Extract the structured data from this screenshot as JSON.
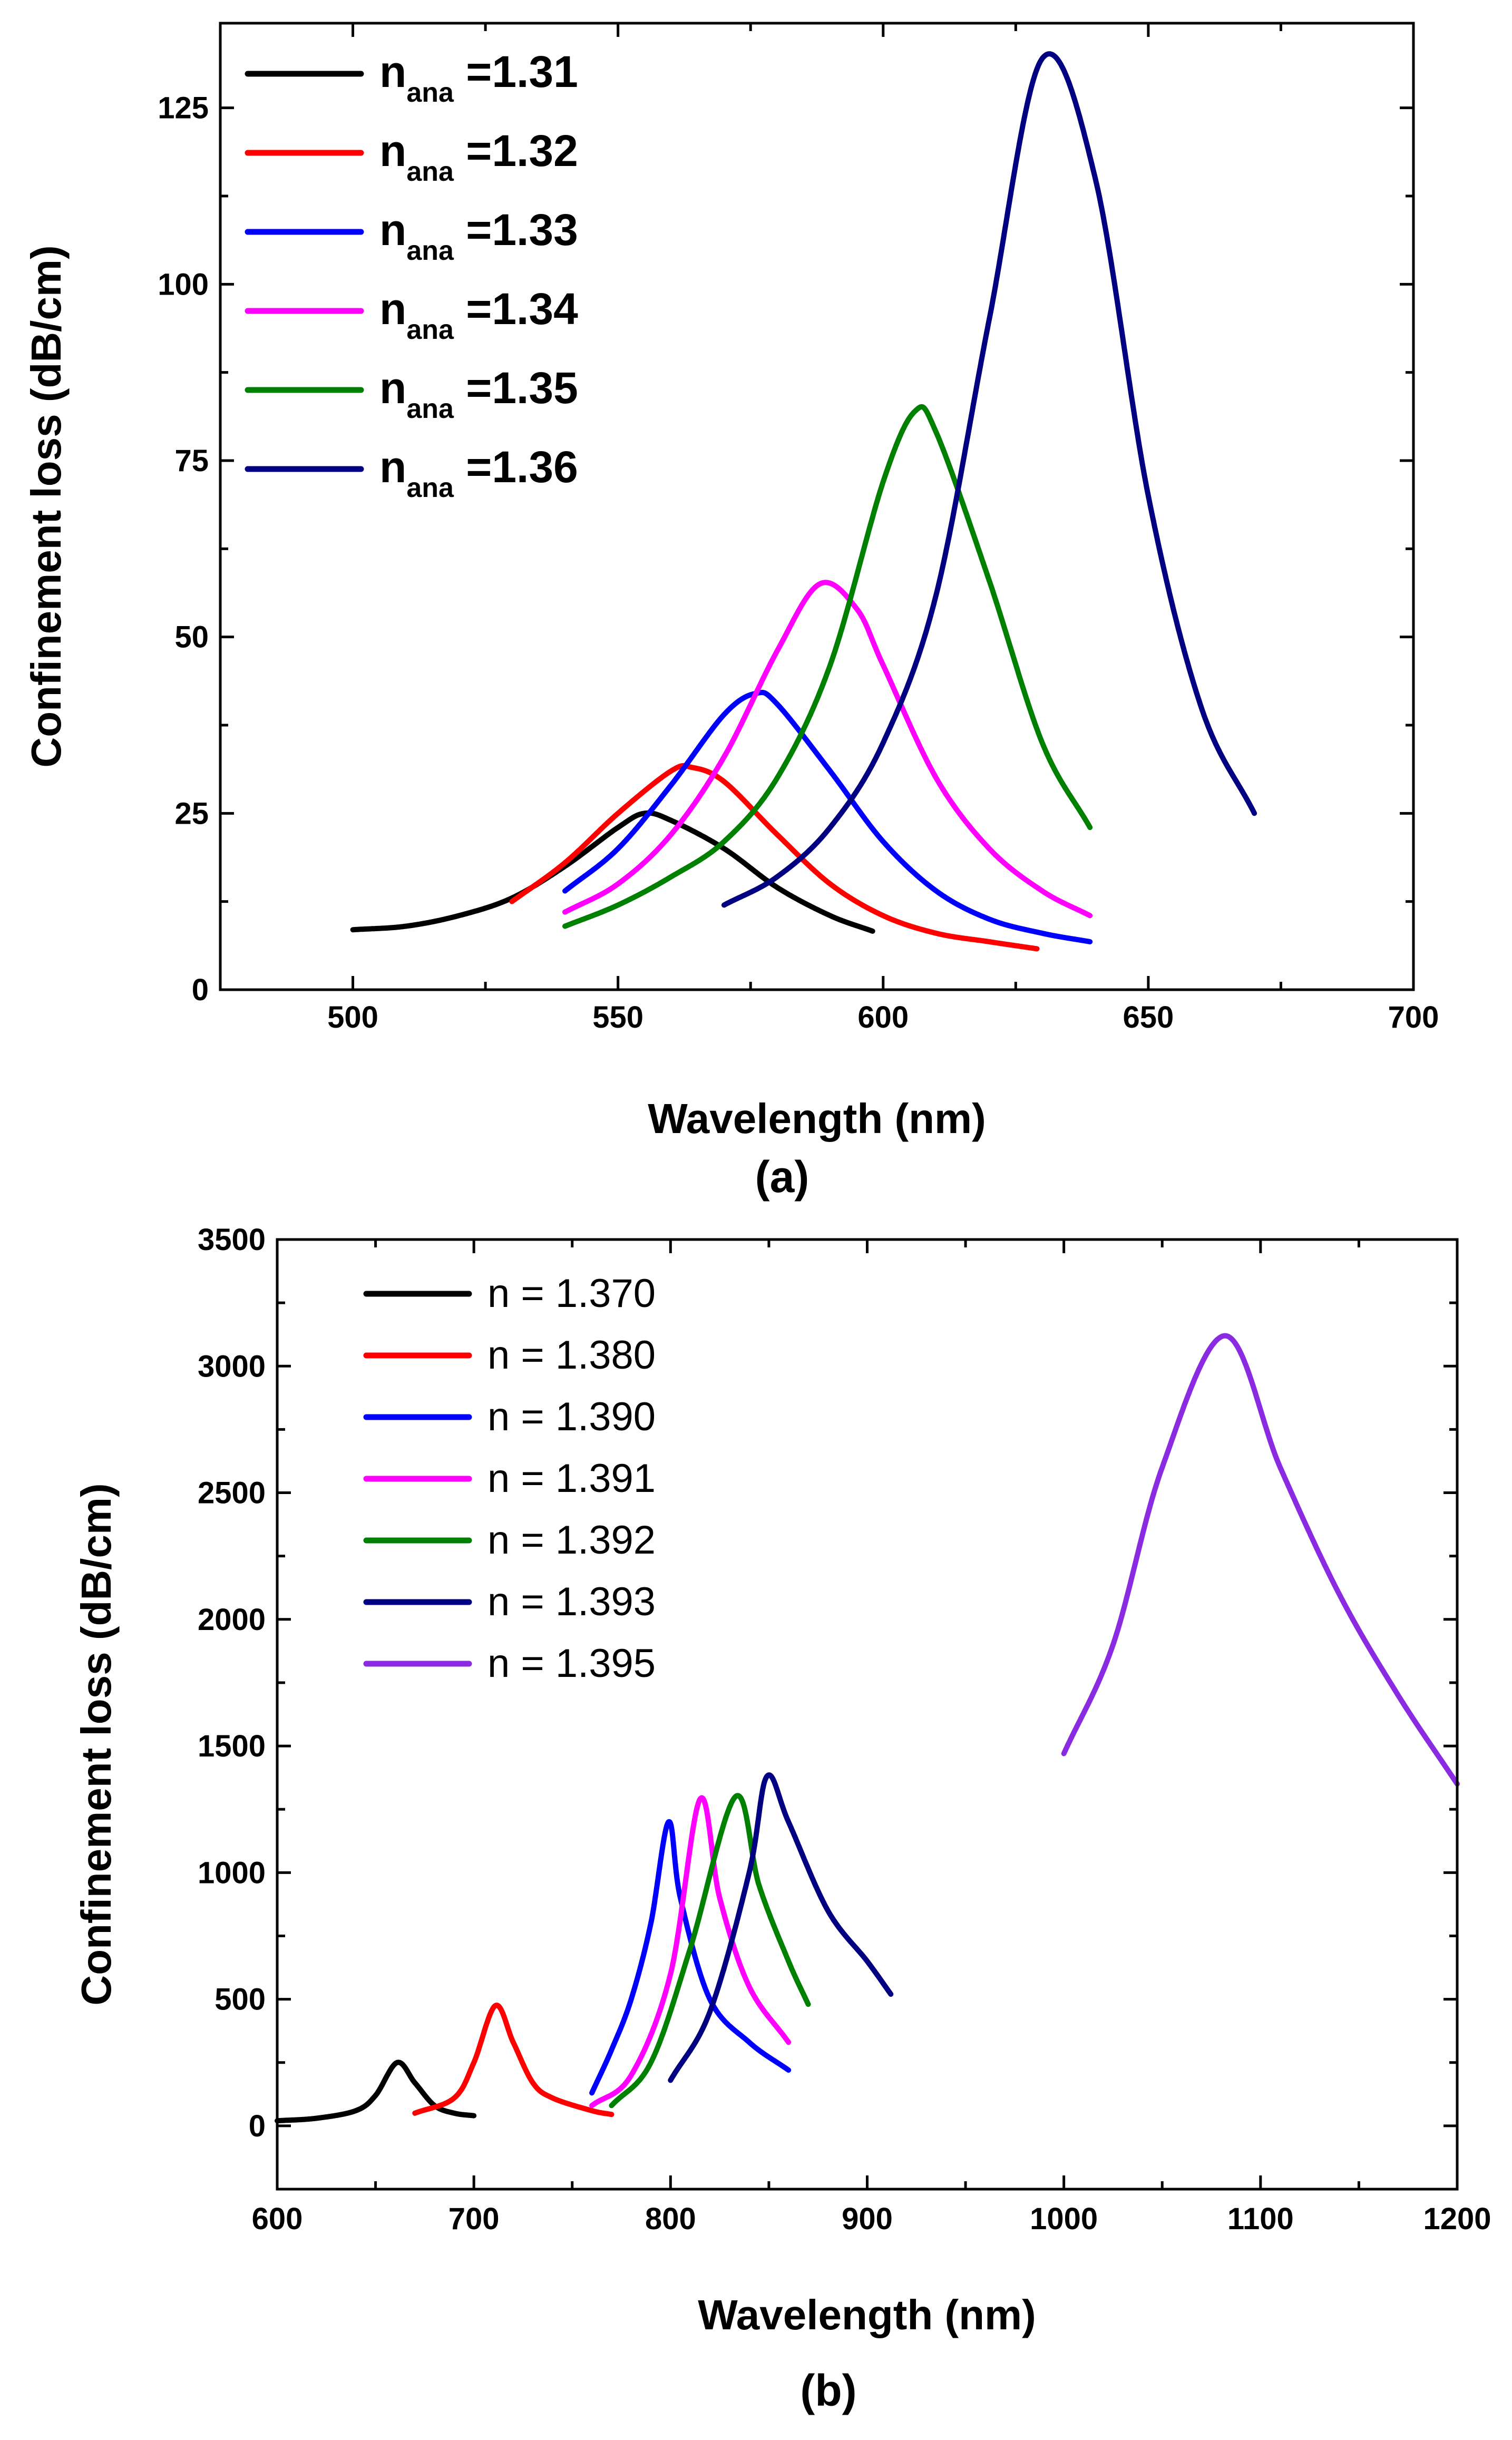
{
  "chart_data": [
    {
      "panel": "(a)",
      "type": "line",
      "xlabel": "Wavelength (nm)",
      "ylabel": "Confinement loss (dB/cm)",
      "xlim": [
        475,
        700
      ],
      "ylim": [
        0,
        137
      ],
      "xticks": [
        500,
        550,
        600,
        650,
        700
      ],
      "yticks": [
        0,
        25,
        50,
        75,
        100,
        125
      ],
      "legend_position": "top-left",
      "series": [
        {
          "name": "n",
          "sub": "ana",
          "suffix": " =1.31",
          "color": "#000000",
          "peak_x": 555,
          "peak_y": 25,
          "gamma": 30,
          "x": [
            500,
            510,
            520,
            530,
            540,
            550,
            555,
            560,
            570,
            580,
            590,
            598
          ],
          "y": [
            8.5,
            9,
            10.5,
            13,
            17.5,
            23,
            25,
            24,
            20,
            14.5,
            10.5,
            8.3
          ]
        },
        {
          "name": "n",
          "sub": "ana",
          "suffix": " =1.32",
          "color": "#ff0000",
          "peak_x": 564,
          "peak_y": 31.5,
          "gamma": 26,
          "x": [
            530,
            540,
            550,
            560,
            564,
            570,
            580,
            590,
            600,
            610,
            620,
            629
          ],
          "y": [
            12.5,
            18,
            25,
            31,
            31.5,
            29.5,
            22,
            15,
            10.5,
            8,
            6.8,
            5.8
          ]
        },
        {
          "name": "n",
          "sub": "ana",
          "suffix": " =1.33",
          "color": "#0000ff",
          "peak_x": 576,
          "peak_y": 42,
          "gamma": 22,
          "x": [
            540,
            550,
            560,
            570,
            576,
            580,
            590,
            600,
            610,
            620,
            630,
            639
          ],
          "y": [
            14,
            20,
            29,
            39,
            42,
            40.5,
            31,
            21,
            14,
            10,
            8,
            6.8
          ]
        },
        {
          "name": "n",
          "sub": "ana",
          "suffix": " =1.34",
          "color": "#ff00ff",
          "peak_x": 588,
          "peak_y": 57.5,
          "gamma": 20,
          "x": [
            540,
            550,
            560,
            570,
            580,
            588,
            595,
            600,
            610,
            620,
            630,
            639
          ],
          "y": [
            11,
            15,
            22,
            33,
            48,
            57.5,
            54,
            46,
            30,
            20,
            14,
            10.5
          ]
        },
        {
          "name": "n",
          "sub": "ana",
          "suffix": " =1.35",
          "color": "#008000",
          "peak_x": 606,
          "peak_y": 82,
          "gamma": 18,
          "x": [
            540,
            550,
            560,
            570,
            580,
            590,
            600,
            606,
            610,
            620,
            630,
            639
          ],
          "y": [
            9,
            12,
            16,
            21,
            30,
            46,
            72,
            82,
            79,
            58,
            35,
            23
          ]
        },
        {
          "name": "n",
          "sub": "ana",
          "suffix": " =1.36",
          "color": "#000080",
          "peak_x": 630,
          "peak_y": 132,
          "gamma": 18,
          "x": [
            570,
            580,
            590,
            600,
            610,
            620,
            630,
            640,
            650,
            660,
            670
          ],
          "y": [
            12,
            16,
            23,
            35,
            56,
            95,
            132,
            115,
            70,
            40,
            25
          ]
        }
      ]
    },
    {
      "panel": "(b)",
      "type": "line",
      "xlabel": "Wavelength (nm)",
      "ylabel": "Confinement loss (dB/cm)",
      "xlim": [
        600,
        1200
      ],
      "ylim": [
        -250,
        3500
      ],
      "xticks": [
        600,
        700,
        800,
        900,
        1000,
        1100,
        1200
      ],
      "yticks": [
        0,
        500,
        1000,
        1500,
        2000,
        2500,
        3000,
        3500
      ],
      "legend_position": "top-left",
      "series": [
        {
          "name": "n = 1.370",
          "color": "#000000",
          "peak_x": 661,
          "peak_y": 250,
          "gamma": 22,
          "x": [
            600,
            620,
            640,
            650,
            661,
            670,
            680,
            690,
            700
          ],
          "y": [
            20,
            30,
            60,
            120,
            250,
            170,
            80,
            50,
            40
          ]
        },
        {
          "name": "n = 1.380",
          "color": "#ff0000",
          "peak_x": 711,
          "peak_y": 475,
          "gamma": 20,
          "x": [
            670,
            690,
            700,
            711,
            720,
            730,
            740,
            760,
            770
          ],
          "y": [
            50,
            110,
            250,
            475,
            330,
            170,
            110,
            60,
            45
          ]
        },
        {
          "name": "n = 1.390",
          "color": "#0000ff",
          "peak_x": 799,
          "peak_y": 1200,
          "gamma": 30,
          "x": [
            760,
            770,
            780,
            790,
            799,
            805,
            820,
            840,
            860
          ],
          "y": [
            130,
            300,
            500,
            800,
            1200,
            900,
            500,
            330,
            220
          ]
        },
        {
          "name": "n = 1.391",
          "color": "#ff00ff",
          "peak_x": 815,
          "peak_y": 1290,
          "gamma": 28,
          "x": [
            760,
            780,
            800,
            815,
            825,
            840,
            860
          ],
          "y": [
            80,
            200,
            600,
            1290,
            900,
            550,
            330
          ]
        },
        {
          "name": "n = 1.392",
          "color": "#008000",
          "peak_x": 833,
          "peak_y": 1300,
          "gamma": 28,
          "x": [
            770,
            790,
            810,
            833,
            845,
            860,
            870
          ],
          "y": [
            80,
            250,
            700,
            1300,
            950,
            650,
            480
          ]
        },
        {
          "name": "n = 1.393",
          "color": "#000080",
          "peak_x": 849,
          "peak_y": 1380,
          "gamma": 30,
          "x": [
            800,
            820,
            840,
            849,
            860,
            880,
            900,
            912
          ],
          "y": [
            180,
            450,
            1000,
            1380,
            1200,
            850,
            650,
            520
          ]
        },
        {
          "name": "n = 1.395",
          "color": "#8a2be2",
          "peak_x": 1082,
          "peak_y": 3120,
          "gamma": 115,
          "x": [
            1000,
            1025,
            1050,
            1082,
            1110,
            1140,
            1170,
            1200
          ],
          "y": [
            1470,
            1900,
            2600,
            3120,
            2600,
            2100,
            1700,
            1350
          ]
        }
      ]
    }
  ],
  "labels": {
    "a": {
      "xlabel": "Wavelength (nm)",
      "ylabel": "Confinement loss (dB/cm)",
      "panel": "(a)"
    },
    "b": {
      "xlabel": "Wavelength (nm)",
      "ylabel": "Confinement loss (dB/cm)",
      "panel": "(b)"
    }
  }
}
